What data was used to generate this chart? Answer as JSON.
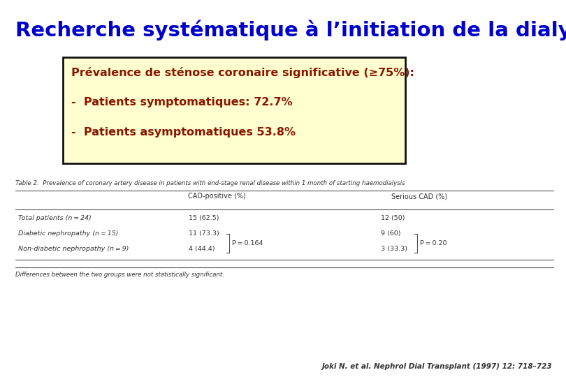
{
  "title": "Recherche systématique à l’initiation de la dialyse",
  "title_color": "#0000CC",
  "title_fontsize": 21,
  "box_title": "Prévalence de sténose coronaire significative (≥75%):",
  "box_line1": "-  Patients symptomatiques: 72.7%",
  "box_line2": "-  Patients asymptomatiques 53.8%",
  "box_text_color": "#8B1500",
  "box_bg_color": "#FFFFD0",
  "box_edge_color": "#111111",
  "table_title": "Table 2.  Prevalence of coronary artery disease in patients with end-stage renal disease within 1 month of starting haemodialysis",
  "col_header1": "CAD-positive (%)",
  "col_header2": "Serious CAD (%)",
  "row_labels": [
    "Total patients (n = 24)",
    "Diabetic nephropathy (n = 15)",
    "Non-diabetic nephropathy (n = 9)"
  ],
  "col1_values": [
    "15 (62.5)",
    "11 (73.3)",
    "4 (44.4)"
  ],
  "col1_p": "P = 0.164",
  "col2_values": [
    "12 (50)",
    "9 (60)",
    "3 (33.3)"
  ],
  "col2_p": "P = 0.20",
  "footer": "Differences between the two groups were not statistically significant.",
  "citation": "Joki N. et al. Nephrol Dial Transplant (1997) 12: 718–723",
  "bg_color": "#FFFFFF"
}
